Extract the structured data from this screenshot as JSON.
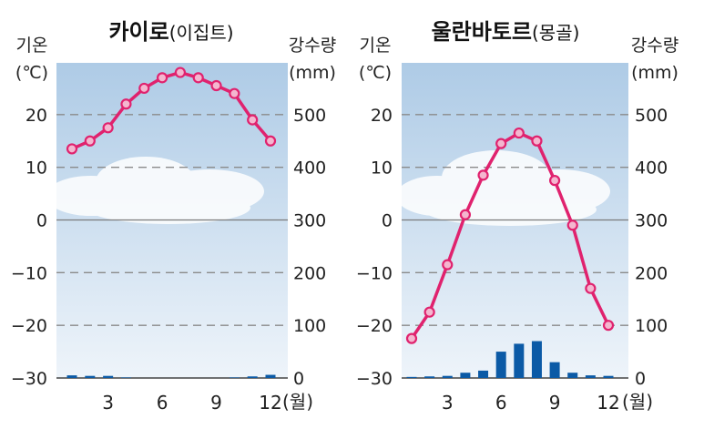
{
  "figures": [
    {
      "title_main": "카이로",
      "title_sub": "(이집트)",
      "left_unit_1": "기온",
      "left_unit_2": "(℃)",
      "right_unit_1": "강수량",
      "right_unit_2": "(mm)",
      "x_unit": "(월)"
    },
    {
      "title_main": "울란바토르",
      "title_sub": "(몽골)",
      "left_unit_1": "기온",
      "left_unit_2": "(℃)",
      "right_unit_1": "강수량",
      "right_unit_2": "(mm)",
      "x_unit": "(월)"
    }
  ],
  "colors": {
    "temperature_line": "#e0226e",
    "temperature_marker_fill": "#f4b6cf",
    "precipitation_bar": "#0b5aa6",
    "sky_top": "#aecbe6",
    "sky_bottom": "#edf3fa",
    "grid_dashed": "#8a8a8a",
    "zero_line": "#7a7a7a"
  },
  "chart_data": [
    {
      "type": "line+bar",
      "title": "카이로(이집트)",
      "x": [
        1,
        2,
        3,
        4,
        5,
        6,
        7,
        8,
        9,
        10,
        11,
        12
      ],
      "xticks": [
        3,
        6,
        9,
        12
      ],
      "temperature_ylim": [
        -30,
        30
      ],
      "temperature_yticks": [
        20,
        10,
        0,
        -10,
        -20,
        -30
      ],
      "precipitation_ylim": [
        0,
        600
      ],
      "precipitation_yticks": [
        500,
        400,
        300,
        200,
        100,
        0
      ],
      "series": [
        {
          "name": "기온",
          "axis": "left",
          "kind": "line",
          "values": [
            13.5,
            15.0,
            17.5,
            22.0,
            25.0,
            27.0,
            28.0,
            27.0,
            25.5,
            24.0,
            19.0,
            15.0
          ]
        },
        {
          "name": "강수량",
          "axis": "right",
          "kind": "bar",
          "values": [
            5,
            4,
            4,
            1,
            0,
            0,
            0,
            0,
            0,
            1,
            3,
            6
          ]
        }
      ]
    },
    {
      "type": "line+bar",
      "title": "울란바토르(몽골)",
      "x": [
        1,
        2,
        3,
        4,
        5,
        6,
        7,
        8,
        9,
        10,
        11,
        12
      ],
      "xticks": [
        3,
        6,
        9,
        12
      ],
      "temperature_ylim": [
        -30,
        30
      ],
      "temperature_yticks": [
        20,
        10,
        0,
        -10,
        -20,
        -30
      ],
      "precipitation_ylim": [
        0,
        600
      ],
      "precipitation_yticks": [
        500,
        400,
        300,
        200,
        100,
        0
      ],
      "series": [
        {
          "name": "기온",
          "axis": "left",
          "kind": "line",
          "values": [
            -22.5,
            -17.5,
            -8.5,
            1.0,
            8.5,
            14.5,
            16.5,
            15.0,
            7.5,
            -1.0,
            -13.0,
            -20.0
          ]
        },
        {
          "name": "강수량",
          "axis": "right",
          "kind": "bar",
          "values": [
            2,
            3,
            4,
            10,
            14,
            50,
            65,
            70,
            30,
            10,
            5,
            4
          ]
        }
      ]
    }
  ]
}
